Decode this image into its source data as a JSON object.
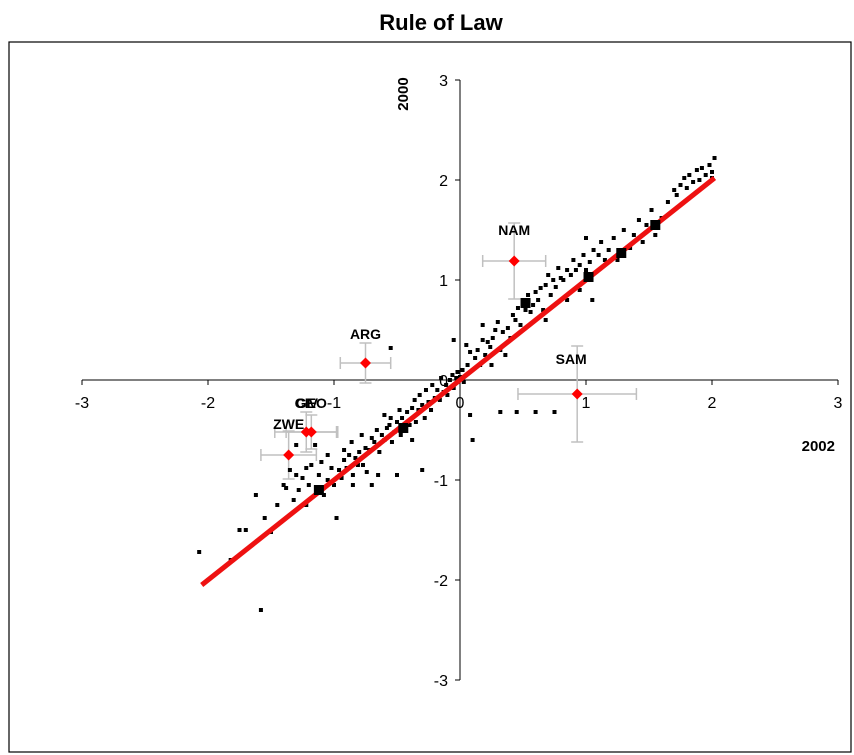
{
  "chart_data": {
    "type": "scatter",
    "title": "Rule of Law",
    "xlabel": "2002",
    "ylabel": "2000",
    "xlim": [
      -3,
      3
    ],
    "ylim": [
      -3,
      3
    ],
    "xticks": [
      "-3",
      "-2",
      "-1",
      "0",
      "1",
      "2",
      "3"
    ],
    "yticks": [
      "-3",
      "-2",
      "-1",
      "0",
      "1",
      "2",
      "3"
    ],
    "grid": false,
    "colors": {
      "points": "#000000",
      "highlight": "#ff0000",
      "fit_line": "#ee1111",
      "error_bars": "#c0c0c0",
      "border": "#000000"
    },
    "fit_line": {
      "x": [
        -2.05,
        2.02
      ],
      "y": [
        -2.05,
        2.02
      ]
    },
    "highlighted": [
      {
        "label": "NAM",
        "x": 0.43,
        "y": 1.19,
        "xerr": 0.25,
        "yerr": 0.38
      },
      {
        "label": "ARG",
        "x": -0.75,
        "y": 0.17,
        "xerr": 0.2,
        "yerr": 0.2
      },
      {
        "label": "SAM",
        "x": 0.93,
        "y": -0.14,
        "xerr": 0.47,
        "yerr": 0.48
      },
      {
        "label": "CIV",
        "x": -1.22,
        "y": -0.52,
        "xerr": 0.25,
        "yerr": 0.2
      },
      {
        "label": "GEO",
        "x": -1.18,
        "y": -0.52,
        "xerr": 0.2,
        "yerr": 0.17
      },
      {
        "label": "ZWE",
        "x": -1.36,
        "y": -0.75,
        "xerr": 0.22,
        "yerr": 0.24
      }
    ],
    "large_points": [
      {
        "x": -1.12,
        "y": -1.1
      },
      {
        "x": -0.45,
        "y": -0.48
      },
      {
        "x": 0.52,
        "y": 0.77
      },
      {
        "x": 1.02,
        "y": 1.03
      },
      {
        "x": 1.28,
        "y": 1.27
      },
      {
        "x": 1.55,
        "y": 1.55
      }
    ],
    "points": [
      [
        -2.07,
        -1.72
      ],
      [
        -1.82,
        -1.8
      ],
      [
        -1.75,
        -1.5
      ],
      [
        -1.7,
        -1.5
      ],
      [
        -1.62,
        -1.15
      ],
      [
        -1.58,
        -2.3
      ],
      [
        -1.55,
        -1.38
      ],
      [
        -1.5,
        -1.52
      ],
      [
        -1.45,
        -1.25
      ],
      [
        -1.4,
        -1.05
      ],
      [
        -1.38,
        -1.08
      ],
      [
        -1.35,
        -0.9
      ],
      [
        -1.32,
        -1.2
      ],
      [
        -1.3,
        -0.95
      ],
      [
        -1.28,
        -1.1
      ],
      [
        -1.25,
        -0.98
      ],
      [
        -1.22,
        -1.25
      ],
      [
        -1.2,
        -1.05
      ],
      [
        -1.18,
        -0.85
      ],
      [
        -1.15,
        -0.65
      ],
      [
        -1.12,
        -0.95
      ],
      [
        -1.1,
        -0.82
      ],
      [
        -1.08,
        -1.15
      ],
      [
        -1.05,
        -1.0
      ],
      [
        -1.02,
        -0.88
      ],
      [
        -1.0,
        -1.05
      ],
      [
        -0.98,
        -1.38
      ],
      [
        -0.96,
        -0.9
      ],
      [
        -0.94,
        -0.98
      ],
      [
        -0.92,
        -0.8
      ],
      [
        -0.9,
        -0.88
      ],
      [
        -0.88,
        -0.75
      ],
      [
        -0.86,
        -0.62
      ],
      [
        -0.85,
        -0.95
      ],
      [
        -0.83,
        -0.78
      ],
      [
        -0.81,
        -0.85
      ],
      [
        -0.8,
        -0.72
      ],
      [
        -0.78,
        -0.55
      ],
      [
        -0.77,
        -0.85
      ],
      [
        -0.75,
        -0.68
      ],
      [
        -0.74,
        -0.92
      ],
      [
        -0.72,
        -0.7
      ],
      [
        -0.7,
        -0.58
      ],
      [
        -0.68,
        -0.62
      ],
      [
        -0.66,
        -0.5
      ],
      [
        -0.64,
        -0.72
      ],
      [
        -0.62,
        -0.55
      ],
      [
        -0.6,
        -0.6
      ],
      [
        -0.58,
        -0.48
      ],
      [
        -0.56,
        -0.45
      ],
      [
        -0.55,
        -0.38
      ],
      [
        -0.54,
        -0.62
      ],
      [
        -0.52,
        -0.52
      ],
      [
        -0.5,
        -0.42
      ],
      [
        -0.48,
        -0.3
      ],
      [
        -0.47,
        -0.55
      ],
      [
        -0.46,
        -0.38
      ],
      [
        -0.44,
        -0.5
      ],
      [
        -0.42,
        -0.32
      ],
      [
        -0.4,
        -0.45
      ],
      [
        -0.38,
        -0.28
      ],
      [
        -0.36,
        -0.2
      ],
      [
        -0.35,
        -0.42
      ],
      [
        -0.33,
        -0.3
      ],
      [
        -0.32,
        -0.15
      ],
      [
        -0.3,
        -0.25
      ],
      [
        -0.28,
        -0.38
      ],
      [
        -0.27,
        -0.1
      ],
      [
        -0.25,
        -0.22
      ],
      [
        -0.23,
        -0.3
      ],
      [
        -0.22,
        -0.05
      ],
      [
        -0.2,
        -0.18
      ],
      [
        -0.18,
        -0.1
      ],
      [
        -0.16,
        -0.2
      ],
      [
        -0.15,
        0.02
      ],
      [
        -0.13,
        -0.12
      ],
      [
        -0.11,
        -0.05
      ],
      [
        -0.1,
        -0.15
      ],
      [
        -0.08,
        0.0
      ],
      [
        -0.06,
        0.05
      ],
      [
        -0.05,
        -0.08
      ],
      [
        -0.03,
        0.02
      ],
      [
        -0.02,
        0.08
      ],
      [
        0.0,
        0.03
      ],
      [
        0.02,
        0.1
      ],
      [
        0.03,
        -0.02
      ],
      [
        0.05,
        0.35
      ],
      [
        0.06,
        0.15
      ],
      [
        0.08,
        0.28
      ],
      [
        0.1,
        -0.6
      ],
      [
        0.12,
        0.22
      ],
      [
        0.14,
        0.3
      ],
      [
        0.16,
        0.15
      ],
      [
        0.18,
        0.4
      ],
      [
        0.2,
        0.25
      ],
      [
        0.22,
        0.38
      ],
      [
        0.24,
        0.33
      ],
      [
        0.26,
        0.42
      ],
      [
        0.28,
        0.5
      ],
      [
        0.3,
        0.58
      ],
      [
        0.32,
        0.3
      ],
      [
        0.34,
        0.48
      ],
      [
        0.36,
        0.25
      ],
      [
        0.38,
        0.52
      ],
      [
        0.4,
        0.42
      ],
      [
        0.42,
        0.65
      ],
      [
        0.44,
        0.6
      ],
      [
        0.46,
        0.72
      ],
      [
        0.48,
        0.55
      ],
      [
        0.5,
        0.78
      ],
      [
        0.52,
        0.7
      ],
      [
        0.54,
        0.85
      ],
      [
        0.56,
        0.68
      ],
      [
        0.58,
        0.75
      ],
      [
        0.6,
        0.88
      ],
      [
        0.62,
        0.8
      ],
      [
        0.64,
        0.92
      ],
      [
        0.66,
        0.7
      ],
      [
        0.68,
        0.95
      ],
      [
        0.7,
        1.05
      ],
      [
        0.72,
        0.85
      ],
      [
        0.74,
        1.0
      ],
      [
        0.76,
        0.93
      ],
      [
        0.78,
        1.12
      ],
      [
        0.8,
        1.02
      ],
      [
        0.82,
        1.0
      ],
      [
        0.85,
        1.1
      ],
      [
        0.88,
        1.05
      ],
      [
        0.9,
        1.2
      ],
      [
        0.92,
        1.1
      ],
      [
        0.95,
        1.15
      ],
      [
        0.98,
        1.25
      ],
      [
        1.0,
        1.1
      ],
      [
        1.03,
        1.18
      ],
      [
        1.06,
        1.3
      ],
      [
        1.1,
        1.25
      ],
      [
        1.12,
        1.38
      ],
      [
        1.15,
        1.2
      ],
      [
        1.18,
        1.3
      ],
      [
        1.22,
        1.42
      ],
      [
        1.25,
        1.2
      ],
      [
        1.3,
        1.5
      ],
      [
        1.35,
        1.32
      ],
      [
        1.38,
        1.45
      ],
      [
        1.42,
        1.6
      ],
      [
        1.45,
        1.38
      ],
      [
        1.48,
        1.55
      ],
      [
        1.52,
        1.7
      ],
      [
        1.55,
        1.45
      ],
      [
        1.6,
        1.62
      ],
      [
        1.65,
        1.78
      ],
      [
        1.7,
        1.9
      ],
      [
        1.72,
        1.85
      ],
      [
        1.75,
        1.95
      ],
      [
        1.78,
        2.02
      ],
      [
        1.8,
        1.92
      ],
      [
        1.82,
        2.05
      ],
      [
        1.85,
        1.98
      ],
      [
        1.88,
        2.1
      ],
      [
        1.9,
        2.0
      ],
      [
        1.92,
        2.12
      ],
      [
        1.95,
        2.05
      ],
      [
        1.98,
        2.15
      ],
      [
        2.0,
        2.02
      ],
      [
        2.02,
        2.22
      ],
      [
        2.0,
        2.08
      ],
      [
        0.95,
        0.9
      ],
      [
        1.05,
        0.8
      ],
      [
        0.75,
        -0.32
      ],
      [
        0.6,
        -0.32
      ],
      [
        0.45,
        -0.32
      ],
      [
        0.32,
        -0.32
      ],
      [
        0.08,
        -0.35
      ],
      [
        -0.55,
        0.32
      ],
      [
        -0.6,
        -0.35
      ],
      [
        -0.3,
        -0.9
      ],
      [
        -0.5,
        -0.95
      ],
      [
        -0.65,
        -0.95
      ],
      [
        -0.7,
        -1.05
      ],
      [
        -0.85,
        -1.05
      ],
      [
        0.18,
        0.55
      ],
      [
        -0.05,
        0.4
      ],
      [
        0.25,
        0.15
      ],
      [
        -0.38,
        -0.6
      ],
      [
        1.0,
        1.42
      ],
      [
        0.85,
        0.8
      ],
      [
        0.68,
        0.6
      ],
      [
        -0.92,
        -0.7
      ],
      [
        -1.05,
        -0.75
      ],
      [
        -1.22,
        -0.88
      ],
      [
        -1.3,
        -0.65
      ]
    ]
  }
}
